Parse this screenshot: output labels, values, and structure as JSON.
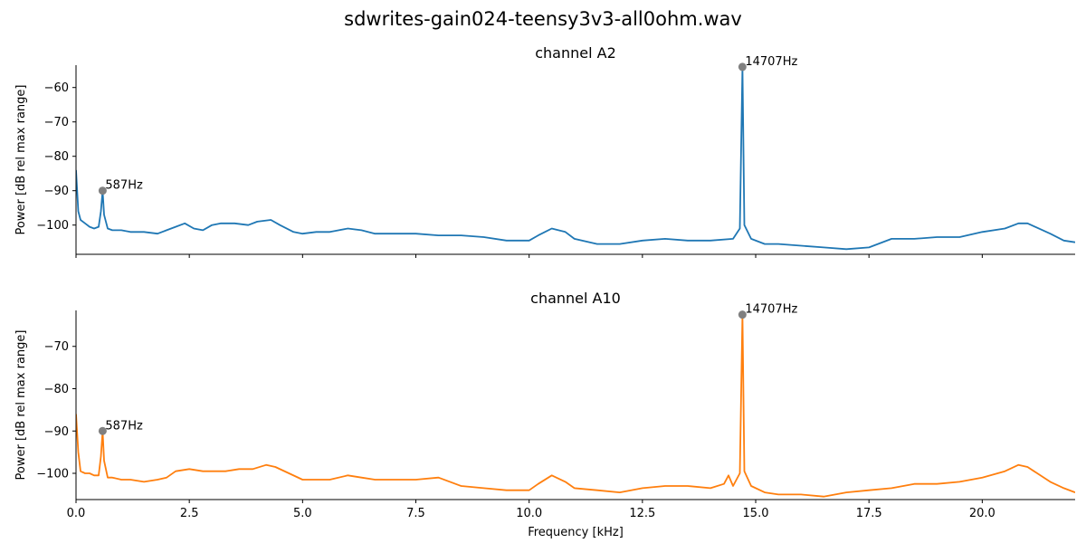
{
  "figure": {
    "title": "sdwrites-gain024-teensy3v3-all0ohm.wav"
  },
  "chart_data": [
    {
      "type": "line",
      "title": "channel A2",
      "xlabel": "",
      "ylabel": "Power [dB rel max range]",
      "xlim": [
        0,
        22.05
      ],
      "ylim": [
        -108.5,
        -53.5
      ],
      "xticks": [
        0,
        2.5,
        5,
        7.5,
        10,
        12.5,
        15,
        17.5,
        20
      ],
      "xtick_labels": [
        "",
        "",
        "",
        "",
        "",
        "",
        "",
        "",
        ""
      ],
      "yticks": [
        -100,
        -90,
        -80,
        -70,
        -60
      ],
      "ytick_labels": [
        "−100",
        "−90",
        "−80",
        "−70",
        "−60"
      ],
      "color": "#1f77b4",
      "series": [
        {
          "x": [
            0,
            0.05,
            0.1,
            0.2,
            0.3,
            0.4,
            0.5,
            0.55,
            0.587,
            0.62,
            0.7,
            0.8,
            1.0,
            1.2,
            1.5,
            1.8,
            2.0,
            2.2,
            2.4,
            2.6,
            2.8,
            3.0,
            3.2,
            3.5,
            3.8,
            4.0,
            4.3,
            4.5,
            4.8,
            5.0,
            5.3,
            5.6,
            6.0,
            6.3,
            6.6,
            7.0,
            7.5,
            8.0,
            8.5,
            9.0,
            9.5,
            10.0,
            10.2,
            10.5,
            10.8,
            11.0,
            11.5,
            12.0,
            12.5,
            13.0,
            13.5,
            14.0,
            14.5,
            14.65,
            14.707,
            14.75,
            14.9,
            15.2,
            15.5,
            16.0,
            16.5,
            17.0,
            17.5,
            18.0,
            18.5,
            19.0,
            19.5,
            20.0,
            20.5,
            20.8,
            21.0,
            21.5,
            21.8,
            22.05
          ],
          "y": [
            -84,
            -96,
            -98.5,
            -99.5,
            -100.5,
            -101,
            -100.5,
            -96,
            -90,
            -97,
            -101,
            -101.5,
            -101.5,
            -102,
            -102,
            -102.5,
            -101.5,
            -100.5,
            -99.5,
            -101,
            -101.5,
            -100,
            -99.5,
            -99.5,
            -100,
            -99,
            -98.5,
            -100,
            -102,
            -102.5,
            -102,
            -102,
            -101,
            -101.5,
            -102.5,
            -102.5,
            -102.5,
            -103,
            -103,
            -103.5,
            -104.5,
            -104.5,
            -103,
            -101,
            -102,
            -104,
            -105.5,
            -105.5,
            -104.5,
            -104,
            -104.5,
            -104.5,
            -104,
            -101,
            -54,
            -100,
            -104,
            -105.5,
            -105.5,
            -106,
            -106.5,
            -107,
            -106.5,
            -104,
            -104,
            -103.5,
            -103.5,
            -102,
            -101,
            -99.5,
            -99.5,
            -102.5,
            -104.5,
            -105
          ]
        }
      ],
      "annotations": [
        {
          "x": 0.587,
          "y": -90,
          "label": "587Hz"
        },
        {
          "x": 14.707,
          "y": -54,
          "label": "14707Hz"
        }
      ]
    },
    {
      "type": "line",
      "title": "channel A10",
      "xlabel": "Frequency [kHz]",
      "ylabel": "Power [dB rel max range]",
      "xlim": [
        0,
        22.05
      ],
      "ylim": [
        -106.2,
        -61.5
      ],
      "xticks": [
        0,
        2.5,
        5,
        7.5,
        10,
        12.5,
        15,
        17.5,
        20
      ],
      "xtick_labels": [
        "0.0",
        "2.5",
        "5.0",
        "7.5",
        "10.0",
        "12.5",
        "15.0",
        "17.5",
        "20.0"
      ],
      "yticks": [
        -100,
        -90,
        -80,
        -70
      ],
      "ytick_labels": [
        "−100",
        "−90",
        "−80",
        "−70"
      ],
      "color": "#ff7f0e",
      "series": [
        {
          "x": [
            0,
            0.05,
            0.1,
            0.2,
            0.3,
            0.4,
            0.5,
            0.55,
            0.587,
            0.62,
            0.7,
            0.8,
            1.0,
            1.2,
            1.5,
            1.8,
            2.0,
            2.2,
            2.5,
            2.8,
            3.0,
            3.3,
            3.6,
            3.9,
            4.2,
            4.4,
            4.7,
            5.0,
            5.3,
            5.6,
            6.0,
            6.3,
            6.6,
            7.0,
            7.5,
            8.0,
            8.5,
            9.0,
            9.5,
            10.0,
            10.2,
            10.5,
            10.8,
            11.0,
            11.5,
            12.0,
            12.5,
            13.0,
            13.5,
            14.0,
            14.3,
            14.4,
            14.5,
            14.65,
            14.707,
            14.75,
            14.9,
            15.2,
            15.5,
            16.0,
            16.5,
            17.0,
            17.5,
            18.0,
            18.5,
            19.0,
            19.5,
            20.0,
            20.5,
            20.8,
            21.0,
            21.5,
            21.8,
            22.05
          ],
          "y": [
            -86,
            -95,
            -99.5,
            -100,
            -100,
            -100.5,
            -100.5,
            -96,
            -90,
            -97,
            -101,
            -101,
            -101.5,
            -101.5,
            -102,
            -101.5,
            -101,
            -99.5,
            -99,
            -99.5,
            -99.5,
            -99.5,
            -99,
            -99,
            -98,
            -98.5,
            -100,
            -101.5,
            -101.5,
            -101.5,
            -100.5,
            -101,
            -101.5,
            -101.5,
            -101.5,
            -101,
            -103,
            -103.5,
            -104,
            -104,
            -102.5,
            -100.5,
            -102,
            -103.5,
            -104,
            -104.5,
            -103.5,
            -103,
            -103,
            -103.5,
            -102.5,
            -100.5,
            -103,
            -100,
            -62.5,
            -99.5,
            -103,
            -104.5,
            -105,
            -105,
            -105.5,
            -104.5,
            -104,
            -103.5,
            -102.5,
            -102.5,
            -102,
            -101,
            -99.5,
            -98,
            -98.5,
            -102,
            -103.5,
            -104.5
          ]
        }
      ],
      "annotations": [
        {
          "x": 0.587,
          "y": -90,
          "label": "587Hz"
        },
        {
          "x": 14.707,
          "y": -62.5,
          "label": "14707Hz"
        }
      ]
    }
  ]
}
